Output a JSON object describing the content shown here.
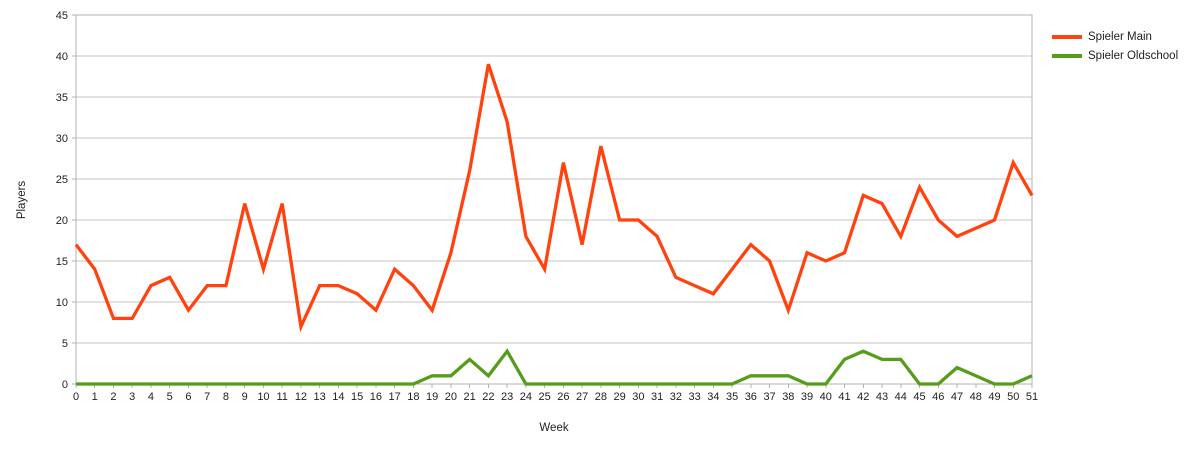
{
  "chart_data": {
    "type": "line",
    "title": "",
    "xlabel": "Week",
    "ylabel": "Players",
    "x": [
      0,
      1,
      2,
      3,
      4,
      5,
      6,
      7,
      8,
      9,
      10,
      11,
      12,
      13,
      14,
      15,
      16,
      17,
      18,
      19,
      20,
      21,
      22,
      23,
      24,
      25,
      26,
      27,
      28,
      29,
      30,
      31,
      32,
      33,
      34,
      35,
      36,
      37,
      38,
      39,
      40,
      41,
      42,
      43,
      44,
      45,
      46,
      47,
      48,
      49,
      50,
      51
    ],
    "ylim": [
      0,
      45
    ],
    "yticks": [
      0,
      5,
      10,
      15,
      20,
      25,
      30,
      35,
      40,
      45
    ],
    "grid": "horizontal",
    "legend_position": "top-right-outside",
    "series": [
      {
        "name": "Spieler Main",
        "color": "#ff420e",
        "values": [
          17,
          14,
          8,
          8,
          12,
          13,
          9,
          12,
          12,
          22,
          14,
          22,
          7,
          12,
          12,
          11,
          9,
          14,
          12,
          9,
          16,
          26,
          39,
          32,
          18,
          14,
          27,
          17,
          29,
          20,
          20,
          18,
          13,
          12,
          11,
          14,
          17,
          15,
          9,
          16,
          15,
          16,
          23,
          22,
          18,
          24,
          20,
          18,
          19,
          20,
          27,
          23
        ]
      },
      {
        "name": "Spieler Oldschool",
        "color": "#579d1c",
        "values": [
          0,
          0,
          0,
          0,
          0,
          0,
          0,
          0,
          0,
          0,
          0,
          0,
          0,
          0,
          0,
          0,
          0,
          0,
          0,
          1,
          1,
          3,
          1,
          4,
          0,
          0,
          0,
          0,
          0,
          0,
          0,
          0,
          0,
          0,
          0,
          0,
          1,
          1,
          1,
          0,
          0,
          3,
          4,
          3,
          3,
          0,
          0,
          2,
          1,
          0,
          0,
          1
        ]
      }
    ],
    "colors": {
      "grid": "#c6c6c6",
      "axis": "#b3b3b3",
      "text": "#222222",
      "background": "#ffffff"
    }
  }
}
